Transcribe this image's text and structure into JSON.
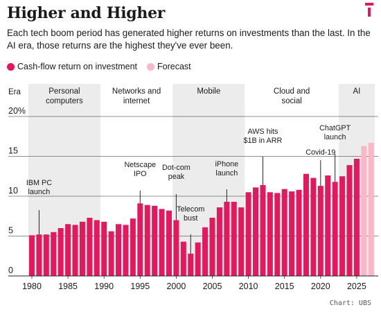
{
  "title": "Higher and Higher",
  "logo_icon": "publisher-logo-icon",
  "subtitle": "Each tech boom period has generated higher returns on investments than the last. In the AI era, those returns are the highest they've ever been.",
  "legend": [
    {
      "label": "Cash-flow return on investment",
      "color": "#e4185c"
    },
    {
      "label": "Forecast",
      "color": "#f8b8c8"
    }
  ],
  "source": "Chart: UBS",
  "chart_data": {
    "type": "bar",
    "era_header": "Era",
    "eras": [
      {
        "label": "Personal computers",
        "start": 1979.5,
        "end": 1989.5,
        "shaded": true
      },
      {
        "label": "Networks and internet",
        "start": 1989.5,
        "end": 1999.5,
        "shaded": false
      },
      {
        "label": "Mobile",
        "start": 1999.5,
        "end": 2009.5,
        "shaded": true
      },
      {
        "label": "Cloud and social",
        "start": 2009.5,
        "end": 2022.5,
        "shaded": false
      },
      {
        "label": "AI",
        "start": 2022.5,
        "end": 2027.5,
        "shaded": true
      }
    ],
    "x": [
      1980,
      1981,
      1982,
      1983,
      1984,
      1985,
      1986,
      1987,
      1988,
      1989,
      1990,
      1991,
      1992,
      1993,
      1994,
      1995,
      1996,
      1997,
      1998,
      1999,
      2000,
      2001,
      2002,
      2003,
      2004,
      2005,
      2006,
      2007,
      2008,
      2009,
      2010,
      2011,
      2012,
      2013,
      2014,
      2015,
      2016,
      2017,
      2018,
      2019,
      2020,
      2021,
      2022,
      2023,
      2024,
      2025,
      2026,
      2027
    ],
    "values": [
      5.1,
      5.2,
      5.2,
      5.5,
      6.0,
      6.5,
      6.4,
      6.8,
      7.3,
      7.0,
      6.8,
      5.6,
      6.5,
      6.4,
      7.2,
      9.1,
      8.9,
      8.8,
      8.4,
      8.2,
      7.0,
      4.3,
      2.8,
      4.2,
      6.1,
      7.3,
      8.6,
      9.3,
      9.3,
      8.6,
      10.5,
      11.1,
      11.4,
      10.5,
      10.4,
      10.9,
      10.6,
      10.8,
      12.8,
      12.3,
      11.3,
      12.6,
      11.8,
      12.5,
      13.9,
      14.7,
      16.3,
      16.7
    ],
    "forecast_from": 2026,
    "ylim": [
      0,
      20
    ],
    "yticks": [
      0,
      5,
      10,
      15,
      20
    ],
    "ytick_labels": [
      "0",
      "5",
      "10",
      "15",
      "20%"
    ],
    "xticks": [
      1980,
      1985,
      1990,
      1995,
      2000,
      2005,
      2010,
      2015,
      2020,
      2025
    ],
    "grid": true,
    "annotations": [
      {
        "text": [
          "IBM PC",
          "launch"
        ],
        "year": 1981
      },
      {
        "text": [
          "Netscape",
          "IPO"
        ],
        "year": 1995
      },
      {
        "text": [
          "Dot-com",
          "peak"
        ],
        "year": 2000
      },
      {
        "text": [
          "Telecom",
          "bust"
        ],
        "year": 2002
      },
      {
        "text": [
          "iPhone",
          "launch"
        ],
        "year": 2007
      },
      {
        "text": [
          "AWS hits",
          "$1B in ARR"
        ],
        "year": 2012
      },
      {
        "text": [
          "Covid-19"
        ],
        "year": 2020
      },
      {
        "text": [
          "ChatGPT",
          "launch"
        ],
        "year": 2022
      }
    ]
  }
}
